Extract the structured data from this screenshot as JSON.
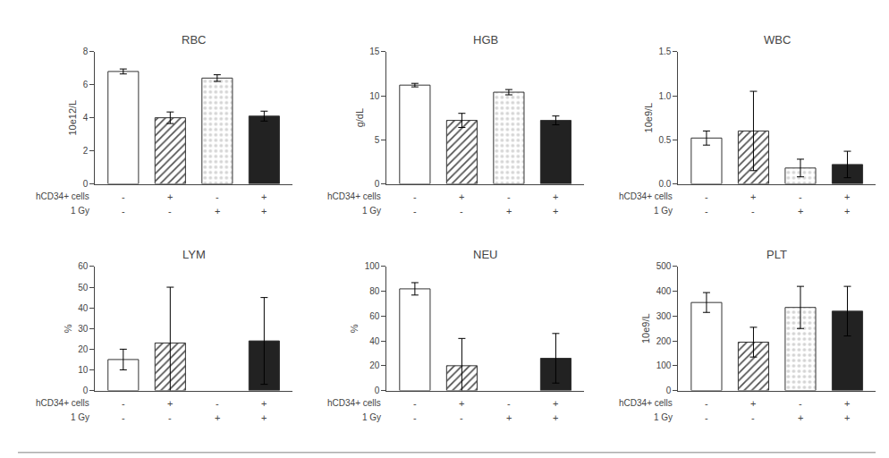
{
  "chart_data": [
    {
      "type": "bar",
      "title": "RBC",
      "ylabel": "10e12/L",
      "values": [
        6.8,
        4.0,
        6.4,
        4.1
      ],
      "errors": [
        0.15,
        0.35,
        0.2,
        0.3
      ],
      "colors": [
        "white",
        "#555555",
        "#d3d3d3",
        "#222222"
      ],
      "ylim": [
        0,
        8
      ],
      "yticks": [
        0,
        2,
        4,
        6,
        8
      ],
      "grid": false,
      "xlabel_rows": [
        {
          "label": "hCD34+ cells",
          "signs": [
            "-",
            "+",
            "-",
            "+"
          ]
        },
        {
          "label": "1 Gy",
          "signs": [
            "-",
            "-",
            "+",
            "+"
          ]
        }
      ]
    },
    {
      "type": "bar",
      "title": "HGB",
      "ylabel": "g/dL",
      "values": [
        11.2,
        7.2,
        10.4,
        7.2
      ],
      "errors": [
        0.2,
        0.8,
        0.3,
        0.5
      ],
      "colors": [
        "white",
        "#555555",
        "#d3d3d3",
        "#222222"
      ],
      "ylim": [
        0,
        15
      ],
      "yticks": [
        0,
        5,
        10,
        15
      ],
      "grid": false,
      "xlabel_rows": [
        {
          "label": "hCD34+ cells",
          "signs": [
            "-",
            "+",
            "-",
            "+"
          ]
        },
        {
          "label": "1 Gy",
          "signs": [
            "-",
            "-",
            "+",
            "+"
          ]
        }
      ]
    },
    {
      "type": "bar",
      "title": "WBC",
      "ylabel": "10e9/L",
      "values": [
        0.52,
        0.6,
        0.18,
        0.22
      ],
      "errors": [
        0.08,
        0.45,
        0.1,
        0.15
      ],
      "colors": [
        "white",
        "#555555",
        "#d3d3d3",
        "#222222"
      ],
      "ylim": [
        0.0,
        1.5
      ],
      "yticks": [
        {
          "value": 0.0,
          "label": "0.0"
        },
        0.5,
        {
          "value": 1.0,
          "label": "1.0"
        },
        1.5
      ],
      "grid": false,
      "xlabel_rows": [
        {
          "label": "hCD34+ cells",
          "signs": [
            "-",
            "+",
            "-",
            "+"
          ]
        },
        {
          "label": "1 Gy",
          "signs": [
            "-",
            "-",
            "+",
            "+"
          ]
        }
      ]
    },
    {
      "type": "bar",
      "title": "LYM",
      "ylabel": "%",
      "values": [
        15,
        23,
        0,
        24
      ],
      "errors": [
        5,
        27,
        0,
        21
      ],
      "colors": [
        "white",
        "#555555",
        "#d3d3d3",
        "#222222"
      ],
      "ylim": [
        0,
        60
      ],
      "yticks": [
        0,
        10,
        20,
        30,
        40,
        50,
        60
      ],
      "grid": false,
      "xlabel_rows": [
        {
          "label": "hCD34+ cells",
          "signs": [
            "-",
            "+",
            "-",
            "+"
          ]
        },
        {
          "label": "1 Gy",
          "signs": [
            "-",
            "-",
            "+",
            "+"
          ]
        }
      ]
    },
    {
      "type": "bar",
      "title": "NEU",
      "ylabel": "%",
      "values": [
        82,
        20,
        0,
        26
      ],
      "errors": [
        5,
        22,
        0,
        20
      ],
      "colors": [
        "white",
        "#555555",
        "#d3d3d3",
        "#222222"
      ],
      "ylim": [
        0,
        100
      ],
      "yticks": [
        0,
        20,
        40,
        60,
        80,
        100
      ],
      "grid": false,
      "xlabel_rows": [
        {
          "label": "hCD34+ cells",
          "signs": [
            "-",
            "+",
            "-",
            "+"
          ]
        },
        {
          "label": "1 Gy",
          "signs": [
            "-",
            "-",
            "+",
            "+"
          ]
        }
      ]
    },
    {
      "type": "bar",
      "title": "PLT",
      "ylabel": "10e9/L",
      "values": [
        355,
        195,
        335,
        320
      ],
      "errors": [
        40,
        60,
        85,
        100
      ],
      "colors": [
        "white",
        "#555555",
        "#d3d3d3",
        "#222222"
      ],
      "ylim": [
        0,
        500
      ],
      "yticks": [
        0,
        100,
        200,
        300,
        400,
        500
      ],
      "grid": false,
      "xlabel_rows": [
        {
          "label": "hCD34+ cells",
          "signs": [
            "-",
            "+",
            "-",
            "+"
          ]
        },
        {
          "label": "1 Gy",
          "signs": [
            "-",
            "-",
            "+",
            "+"
          ]
        }
      ]
    }
  ]
}
